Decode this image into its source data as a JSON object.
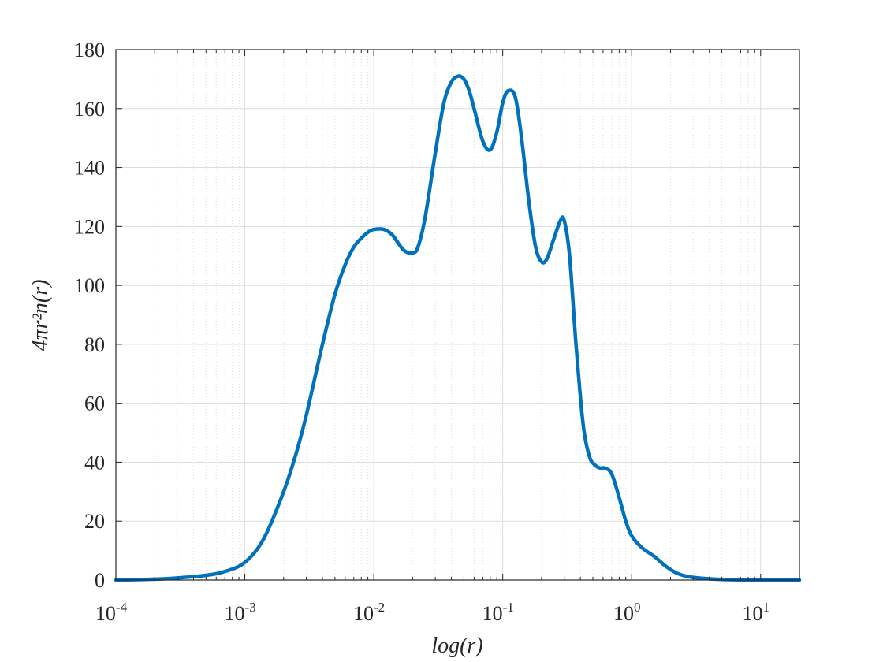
{
  "chart_data": {
    "type": "line",
    "title": "",
    "xlabel": "log(r)",
    "ylabel": "4πr²n(r)",
    "xscale": "log",
    "xlim": [
      0.0001,
      20
    ],
    "ylim": [
      0,
      180
    ],
    "grid": true,
    "minor_grid_x": true,
    "legend": "none",
    "x_ticks": [
      {
        "base": "10",
        "exp": "-4",
        "value": 0.0001
      },
      {
        "base": "10",
        "exp": "-3",
        "value": 0.001
      },
      {
        "base": "10",
        "exp": "-2",
        "value": 0.01
      },
      {
        "base": "10",
        "exp": "-1",
        "value": 0.1
      },
      {
        "base": "10",
        "exp": "0",
        "value": 1
      },
      {
        "base": "10",
        "exp": "1",
        "value": 10
      }
    ],
    "y_ticks": [
      "0",
      "20",
      "40",
      "60",
      "80",
      "100",
      "120",
      "140",
      "160",
      "180"
    ],
    "colors": {
      "line": "#0072BD",
      "grid": "#dcdcdc",
      "axes": "#262626"
    },
    "series": [
      {
        "x": [
          0.0001,
          0.0002,
          0.0003,
          0.0005,
          0.0007,
          0.001,
          0.0014,
          0.002,
          0.0025,
          0.003,
          0.004,
          0.005,
          0.006,
          0.007,
          0.008,
          0.009,
          0.01,
          0.012,
          0.014,
          0.017,
          0.02,
          0.022,
          0.025,
          0.03,
          0.035,
          0.04,
          0.045,
          0.05,
          0.055,
          0.06,
          0.07,
          0.08,
          0.09,
          0.1,
          0.11,
          0.125,
          0.14,
          0.16,
          0.18,
          0.2,
          0.22,
          0.25,
          0.28,
          0.3,
          0.33,
          0.37,
          0.42,
          0.47,
          0.52,
          0.57,
          0.62,
          0.7,
          0.8,
          0.9,
          1.0,
          1.2,
          1.5,
          1.8,
          2.2,
          2.7,
          3.5,
          5,
          8,
          20
        ],
        "y": [
          0,
          0.3,
          0.7,
          1.6,
          2.9,
          6,
          14,
          30,
          43,
          56,
          80,
          97,
          107,
          113,
          116,
          118,
          119,
          119,
          117,
          112,
          111,
          113,
          123,
          145,
          162,
          169,
          171,
          170,
          166,
          160,
          149,
          146,
          152,
          162,
          166,
          164,
          150,
          128,
          113,
          108,
          109,
          116,
          122,
          122,
          110,
          80,
          53,
          42,
          39,
          38,
          38,
          36,
          28,
          20,
          15,
          11,
          8,
          5,
          2.5,
          1.2,
          0.6,
          0.2,
          0.05,
          0
        ]
      }
    ]
  }
}
